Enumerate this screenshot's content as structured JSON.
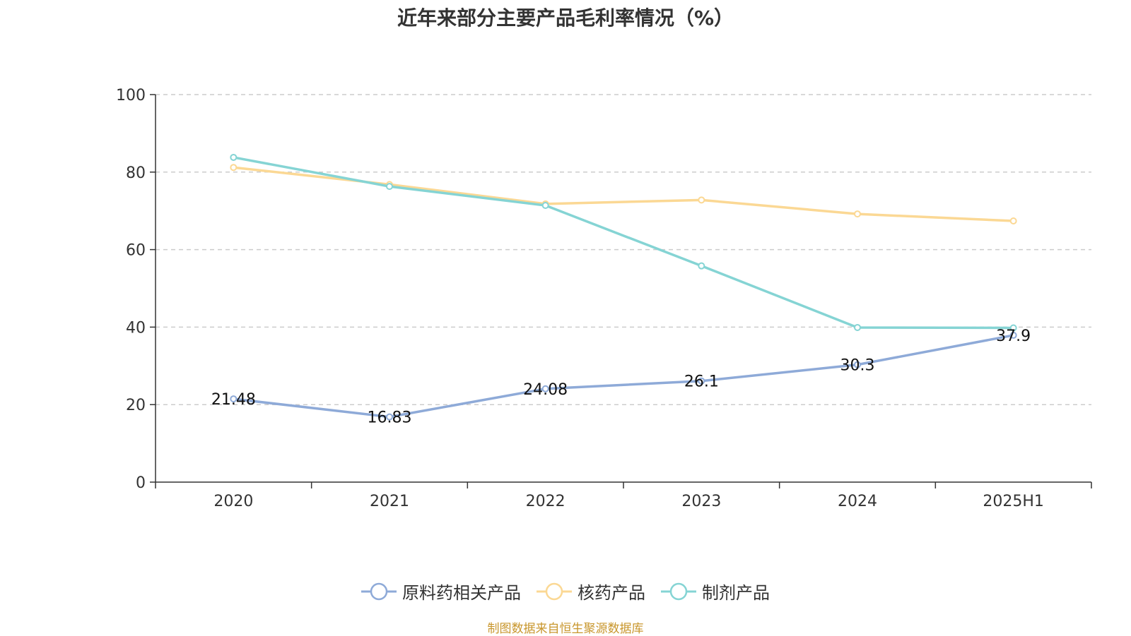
{
  "colors": {
    "axis": "#333333",
    "grid": "#cccccc",
    "source_text": "#c8962c"
  },
  "chart_data": {
    "type": "line",
    "title": "近年来部分主要产品毛利率情况（%）",
    "categories": [
      "2020",
      "2021",
      "2022",
      "2023",
      "2024",
      "2025H1"
    ],
    "ylim": [
      0,
      100
    ],
    "yticks": [
      0,
      20,
      40,
      60,
      80,
      100
    ],
    "grid": true,
    "legend_position": "bottom",
    "series": [
      {
        "name": "原料药相关产品",
        "color": "#8eaad8",
        "values": [
          21.48,
          16.83,
          24.08,
          26.1,
          30.3,
          37.9
        ],
        "labels": [
          "21.48",
          "16.83",
          "24.08",
          "26.1",
          "30.3",
          "37.9"
        ]
      },
      {
        "name": "核药产品",
        "color": "#fbd894",
        "values": [
          81.2,
          76.8,
          71.8,
          72.8,
          69.2,
          67.4
        ]
      },
      {
        "name": "制剂产品",
        "color": "#85d4d4",
        "values": [
          83.8,
          76.3,
          71.4,
          55.8,
          39.9,
          39.8
        ]
      }
    ]
  },
  "source": "制图数据来自恒生聚源数据库"
}
